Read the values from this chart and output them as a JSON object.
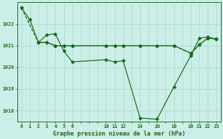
{
  "title": "Graphe pression niveau de la mer (hPa)",
  "background_color": "#cceee8",
  "grid_color": "#aaddcc",
  "line_color": "#1a6b1a",
  "marker_color": "#1a6b1a",
  "xlim": [
    -0.5,
    23.5
  ],
  "ylim": [
    1017.5,
    1023.0
  ],
  "yticks": [
    1018,
    1019,
    1020,
    1021,
    1022
  ],
  "xtick_labels": [
    "0",
    "1",
    "2",
    "3",
    "4",
    "5",
    "6",
    "",
    "",
    "",
    "10",
    "11",
    "12",
    "",
    "14",
    "",
    "16",
    "",
    "18",
    "",
    "20",
    "21",
    "22",
    "23"
  ],
  "xtick_positions": [
    0,
    1,
    2,
    3,
    4,
    5,
    6,
    7,
    8,
    9,
    10,
    11,
    12,
    13,
    14,
    15,
    16,
    17,
    18,
    19,
    20,
    21,
    22,
    23
  ],
  "series": [
    {
      "x": [
        0,
        2,
        3,
        4,
        5,
        6,
        10,
        11,
        12,
        14,
        16,
        18,
        20,
        21,
        22,
        23
      ],
      "y": [
        1022.75,
        1021.15,
        1021.15,
        1021.0,
        1021.0,
        1021.0,
        1021.0,
        1021.0,
        1021.0,
        1021.0,
        1021.0,
        1021.0,
        1020.65,
        1021.05,
        1021.35,
        1021.3
      ],
      "linestyle": "--",
      "linewidth": 0.9,
      "marker": "D",
      "markersize": 2.5
    },
    {
      "x": [
        0,
        1,
        2,
        3,
        4,
        5,
        6,
        10,
        11,
        12,
        14,
        16,
        18,
        20,
        21,
        22,
        23
      ],
      "y": [
        1022.75,
        1022.2,
        1021.15,
        1021.5,
        1021.55,
        1020.75,
        1020.25,
        1020.35,
        1020.25,
        1020.3,
        1017.65,
        1017.6,
        1019.1,
        1020.55,
        1021.35,
        1021.4,
        1021.3
      ],
      "linestyle": "-",
      "linewidth": 0.9,
      "marker": "D",
      "markersize": 2.5
    },
    {
      "x": [
        2,
        3,
        4,
        5,
        6,
        10,
        11,
        12,
        14,
        16,
        18,
        20,
        21,
        22,
        23
      ],
      "y": [
        1021.15,
        1021.15,
        1021.0,
        1021.0,
        1021.0,
        1021.0,
        1021.0,
        1021.0,
        1021.0,
        1021.0,
        1021.0,
        1020.65,
        1021.05,
        1021.35,
        1021.3
      ],
      "linestyle": "-",
      "linewidth": 0.9,
      "marker": "D",
      "markersize": 2.5
    }
  ]
}
